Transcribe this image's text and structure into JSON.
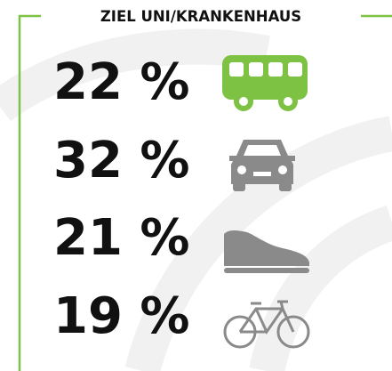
{
  "header": {
    "title": "ZIEL UNI/KRANKENHAUS"
  },
  "items": [
    {
      "label": "22 %"
    },
    {
      "label": "32 %"
    },
    {
      "label": "21 %"
    },
    {
      "label": "19 %"
    }
  ]
}
